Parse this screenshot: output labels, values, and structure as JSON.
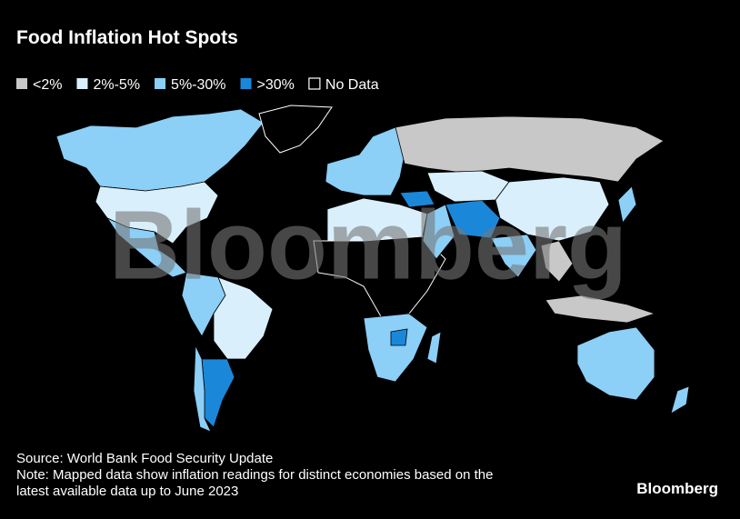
{
  "header": {
    "title": "Food Inflation Hot Spots"
  },
  "legend": [
    {
      "label": "<2%",
      "color": "#c8c8c8"
    },
    {
      "label": "2%-5%",
      "color": "#d9f0fc"
    },
    {
      "label": "5%-30%",
      "color": "#8ccff7"
    },
    {
      "label": ">30%",
      "color": "#1b87d9"
    },
    {
      "label": "No Data",
      "color": "#000000"
    }
  ],
  "watermark": "Bloomberg",
  "footer": {
    "source": "Source: World Bank Food Security Update",
    "note": [
      "Note: Mapped data show inflation readings for distinct economies based on the",
      "latest available data up to June 2023"
    ],
    "logo": "Bloomberg"
  }
}
